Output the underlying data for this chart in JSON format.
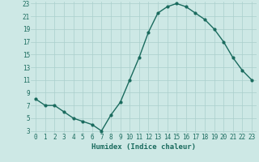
{
  "xlabel": "Humidex (Indice chaleur)",
  "x": [
    0,
    1,
    2,
    3,
    4,
    5,
    6,
    7,
    8,
    9,
    10,
    11,
    12,
    13,
    14,
    15,
    16,
    17,
    18,
    19,
    20,
    21,
    22,
    23
  ],
  "y": [
    8,
    7,
    7,
    6,
    5,
    4.5,
    4,
    3,
    5.5,
    7.5,
    11,
    14.5,
    18.5,
    21.5,
    22.5,
    23,
    22.5,
    21.5,
    20.5,
    19,
    17,
    14.5,
    12.5,
    11
  ],
  "line_color": "#1a6b5e",
  "marker": "o",
  "marker_size": 2,
  "bg_color": "#cde8e5",
  "grid_color": "#aacfcc",
  "axis_label_color": "#1a6b5e",
  "tick_label_color": "#1a6b5e",
  "ylim_min": 3,
  "ylim_max": 23,
  "xlim_min": 0,
  "xlim_max": 23,
  "yticks": [
    3,
    5,
    7,
    9,
    11,
    13,
    15,
    17,
    19,
    21,
    23
  ],
  "xticks": [
    0,
    1,
    2,
    3,
    4,
    5,
    6,
    7,
    8,
    9,
    10,
    11,
    12,
    13,
    14,
    15,
    16,
    17,
    18,
    19,
    20,
    21,
    22,
    23
  ],
  "line_width": 1.0,
  "xlabel_fontsize": 6.5,
  "tick_fontsize": 5.5
}
